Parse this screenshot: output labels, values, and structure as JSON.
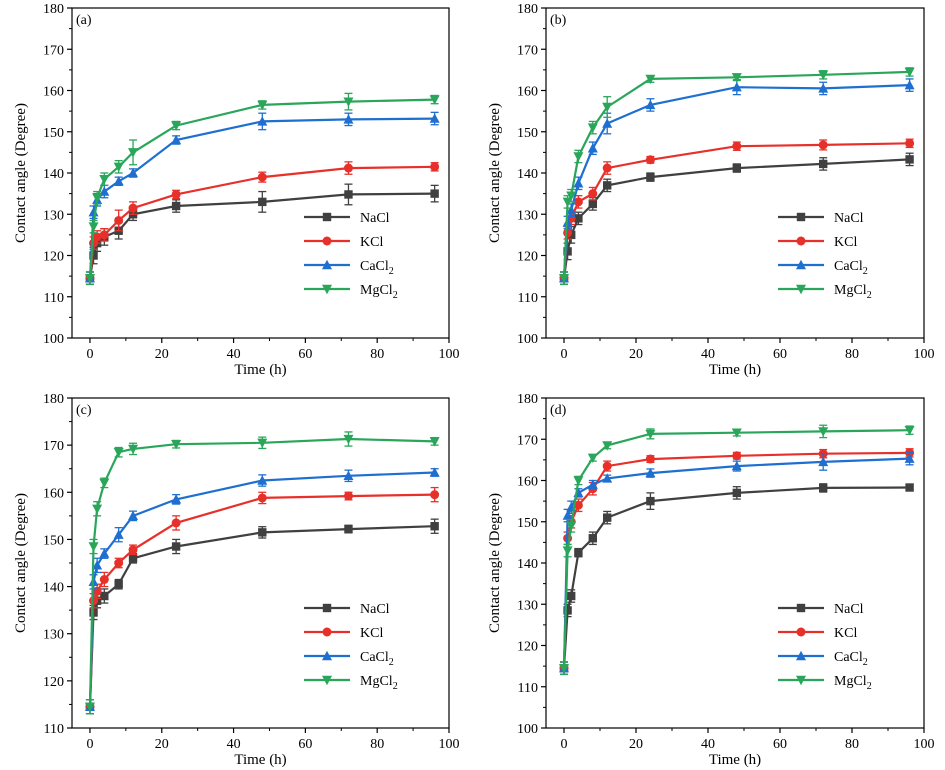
{
  "chart_data": [
    {
      "type": "line",
      "panel_label": "(a)",
      "xlabel": "Time (h)",
      "ylabel": "Contact angle (Degree)",
      "xlim": [
        -5,
        100
      ],
      "ylim": [
        100,
        180
      ],
      "xticks": [
        0,
        20,
        40,
        60,
        80,
        100
      ],
      "yticks": [
        100,
        110,
        120,
        130,
        140,
        150,
        160,
        170,
        180
      ],
      "legend_position": "center-right",
      "x": [
        0,
        1,
        2,
        4,
        8,
        12,
        24,
        48,
        72,
        96
      ],
      "series": [
        {
          "name": "NaCl",
          "formula": "NaCl",
          "subscript": "",
          "color": "#404040",
          "marker": "square",
          "values": [
            114.5,
            120,
            123,
            124.5,
            126,
            130,
            132,
            133,
            134.8,
            135
          ],
          "errors": [
            1.5,
            2,
            2,
            2,
            2,
            1.5,
            1.5,
            2.5,
            2.5,
            2
          ]
        },
        {
          "name": "KCl",
          "formula": "KCl",
          "subscript": "",
          "color": "#e8302a",
          "marker": "circle",
          "values": [
            114.5,
            123,
            124.5,
            125,
            128.5,
            131.5,
            134.8,
            139,
            141.2,
            141.5
          ],
          "errors": [
            1.5,
            1.5,
            1.5,
            1.5,
            2.5,
            1.5,
            1,
            1.2,
            1.5,
            1
          ]
        },
        {
          "name": "CaCl2",
          "formula": "CaCl",
          "subscript": "2",
          "color": "#1f6fd1",
          "marker": "triangle-up",
          "values": [
            114.5,
            130.5,
            133.5,
            135.5,
            138,
            140,
            148,
            152.5,
            153,
            153.2
          ],
          "errors": [
            1.5,
            1.5,
            1.5,
            1.5,
            1,
            1,
            1,
            2,
            1.5,
            1.5
          ]
        },
        {
          "name": "MgCl2",
          "formula": "MgCl",
          "subscript": "2",
          "color": "#2aa65a",
          "marker": "triangle-down",
          "values": [
            114.5,
            127,
            134,
            138.5,
            141.5,
            145,
            151.5,
            156.5,
            157.3,
            157.8
          ],
          "errors": [
            1.5,
            1.5,
            1.5,
            1.5,
            1.5,
            3,
            1,
            1,
            2,
            1
          ]
        }
      ]
    },
    {
      "type": "line",
      "panel_label": "(b)",
      "xlabel": "Time (h)",
      "ylabel": "Contact angle (Degree)",
      "xlim": [
        -5,
        100
      ],
      "ylim": [
        100,
        180
      ],
      "xticks": [
        0,
        20,
        40,
        60,
        80,
        100
      ],
      "yticks": [
        100,
        110,
        120,
        130,
        140,
        150,
        160,
        170,
        180
      ],
      "legend_position": "center-right",
      "x": [
        0,
        1,
        2,
        4,
        8,
        12,
        24,
        48,
        72,
        96
      ],
      "series": [
        {
          "name": "NaCl",
          "formula": "NaCl",
          "subscript": "",
          "color": "#404040",
          "marker": "square",
          "values": [
            114.5,
            121,
            125,
            129,
            132.5,
            137,
            139,
            141.2,
            142.2,
            143.3
          ],
          "errors": [
            1.5,
            2,
            2,
            1.5,
            1.5,
            1.5,
            1,
            1,
            1.5,
            1.5
          ]
        },
        {
          "name": "KCl",
          "formula": "KCl",
          "subscript": "",
          "color": "#e8302a",
          "marker": "circle",
          "values": [
            114.5,
            125.5,
            129,
            133,
            135,
            141.2,
            143.2,
            146.5,
            146.8,
            147.2
          ],
          "errors": [
            1.5,
            1.5,
            1.5,
            1.5,
            1.5,
            1.5,
            0.8,
            1,
            1.2,
            1
          ]
        },
        {
          "name": "CaCl2",
          "formula": "CaCl",
          "subscript": "2",
          "color": "#1f6fd1",
          "marker": "triangle-up",
          "values": [
            114.5,
            128,
            131,
            137.5,
            146,
            152,
            156.5,
            160.8,
            160.5,
            161.3
          ],
          "errors": [
            1.5,
            1.5,
            1.5,
            1.5,
            1.5,
            2.5,
            1.5,
            1.8,
            1.5,
            1.5
          ]
        },
        {
          "name": "MgCl2",
          "formula": "MgCl",
          "subscript": "2",
          "color": "#2aa65a",
          "marker": "triangle-down",
          "values": [
            114.5,
            133,
            134.5,
            144,
            151,
            156,
            162.8,
            163.2,
            163.8,
            164.5
          ],
          "errors": [
            1.5,
            1.5,
            1.5,
            1.5,
            1.5,
            2.5,
            0.8,
            0.8,
            1,
            1
          ]
        }
      ]
    },
    {
      "type": "line",
      "panel_label": "(c)",
      "xlabel": "Time (h)",
      "ylabel": "Contact angle (Degree)",
      "xlim": [
        -5,
        100
      ],
      "ylim": [
        110,
        180
      ],
      "xticks": [
        0,
        20,
        40,
        60,
        80,
        100
      ],
      "yticks": [
        110,
        120,
        130,
        140,
        150,
        160,
        170,
        180
      ],
      "legend_position": "bottom-right",
      "x": [
        0,
        1,
        2,
        4,
        8,
        12,
        24,
        48,
        72,
        96
      ],
      "series": [
        {
          "name": "NaCl",
          "formula": "NaCl",
          "subscript": "",
          "color": "#404040",
          "marker": "square",
          "values": [
            114.5,
            134.5,
            137,
            138,
            140.5,
            146,
            148.5,
            151.5,
            152.2,
            152.8
          ],
          "errors": [
            1.5,
            1.5,
            1.5,
            1.5,
            1,
            1,
            1.5,
            1.2,
            0.8,
            1.5
          ]
        },
        {
          "name": "KCl",
          "formula": "KCl",
          "subscript": "",
          "color": "#e8302a",
          "marker": "circle",
          "values": [
            114.5,
            137,
            139,
            141.5,
            145,
            147.8,
            153.5,
            158.8,
            159.2,
            159.5
          ],
          "errors": [
            1.5,
            1.5,
            1.5,
            1.5,
            1,
            1,
            1.5,
            1.2,
            0.8,
            1.5
          ]
        },
        {
          "name": "CaCl2",
          "formula": "CaCl",
          "subscript": "2",
          "color": "#1f6fd1",
          "marker": "triangle-up",
          "values": [
            114.5,
            141,
            144.5,
            147,
            151,
            155,
            158.5,
            162.5,
            163.5,
            164.2
          ],
          "errors": [
            1.5,
            1.5,
            1.5,
            1,
            1.5,
            1,
            1,
            1.2,
            1.2,
            0.8
          ]
        },
        {
          "name": "MgCl2",
          "formula": "MgCl",
          "subscript": "2",
          "color": "#2aa65a",
          "marker": "triangle-down",
          "values": [
            114.5,
            148.5,
            156.5,
            162,
            168.5,
            169.2,
            170.2,
            170.5,
            171.3,
            170.8
          ],
          "errors": [
            1.5,
            1.5,
            1.5,
            1,
            1,
            1.2,
            0.8,
            1.2,
            1.5,
            0.8
          ]
        }
      ]
    },
    {
      "type": "line",
      "panel_label": "(d)",
      "xlabel": "Time (h)",
      "ylabel": "Contact angle (Degree)",
      "xlim": [
        -5,
        100
      ],
      "ylim": [
        100,
        180
      ],
      "xticks": [
        0,
        20,
        40,
        60,
        80,
        100
      ],
      "yticks": [
        100,
        110,
        120,
        130,
        140,
        150,
        160,
        170,
        180
      ],
      "legend_position": "bottom-right",
      "x": [
        0,
        1,
        2,
        4,
        8,
        12,
        24,
        48,
        72,
        96
      ],
      "series": [
        {
          "name": "NaCl",
          "formula": "NaCl",
          "subscript": "",
          "color": "#404040",
          "marker": "square",
          "values": [
            114.5,
            128.5,
            132,
            142.5,
            146,
            151,
            155,
            157,
            158.2,
            158.3
          ],
          "errors": [
            1.5,
            1.5,
            1.5,
            1,
            1.5,
            1.5,
            2,
            1.5,
            1,
            0.8
          ]
        },
        {
          "name": "KCl",
          "formula": "KCl",
          "subscript": "",
          "color": "#e8302a",
          "marker": "circle",
          "values": [
            114.5,
            146,
            150,
            154,
            158,
            163.5,
            165.2,
            166,
            166.5,
            166.7
          ],
          "errors": [
            1.5,
            1.5,
            1.5,
            1.5,
            1.5,
            1.2,
            0.8,
            0.8,
            1,
            1
          ]
        },
        {
          "name": "CaCl2",
          "formula": "CaCl",
          "subscript": "2",
          "color": "#1f6fd1",
          "marker": "triangle-up",
          "values": [
            114.5,
            151.5,
            153.5,
            157,
            159,
            160.5,
            161.8,
            163.5,
            164.5,
            165.3
          ],
          "errors": [
            1.5,
            1.5,
            1.5,
            1,
            1,
            0.8,
            1,
            1.2,
            2,
            1.5
          ]
        },
        {
          "name": "MgCl2",
          "formula": "MgCl",
          "subscript": "2",
          "color": "#2aa65a",
          "marker": "triangle-down",
          "values": [
            114.5,
            143,
            149,
            160,
            165.5,
            168.5,
            171.3,
            171.6,
            171.9,
            172.2
          ],
          "errors": [
            1.5,
            1.5,
            1.5,
            1,
            0.8,
            0.8,
            1.2,
            0.8,
            1.5,
            1
          ]
        }
      ]
    }
  ]
}
